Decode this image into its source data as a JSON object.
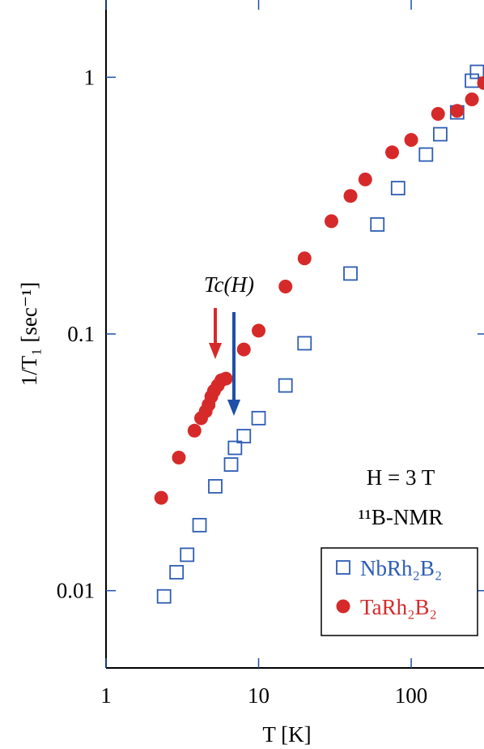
{
  "chart_data": {
    "type": "scatter",
    "xscale": "log",
    "yscale": "log",
    "xlim": [
      1,
      300
    ],
    "ylim": [
      0.005,
      2
    ],
    "xlabel": "T [K]",
    "ylabel": "1/T₁ [sec⁻¹]",
    "xticks": [
      "1",
      "10",
      "100"
    ],
    "yticks": [
      "0.01",
      "0.1",
      "1"
    ],
    "annotation_field": "H = 3 T",
    "annotation_nucleus": "¹¹B-NMR",
    "annotation_tc": "Tc(H)",
    "arrow_colors": [
      "#d62a2a",
      "#1f4fa8"
    ],
    "series": [
      {
        "name": "NbRh₂B₂",
        "marker": "open-square",
        "color": "#2e5db5",
        "points": [
          {
            "x": 2.4,
            "y": 0.0095
          },
          {
            "x": 2.9,
            "y": 0.0118
          },
          {
            "x": 3.4,
            "y": 0.0138
          },
          {
            "x": 4.1,
            "y": 0.018
          },
          {
            "x": 5.2,
            "y": 0.0255
          },
          {
            "x": 6.6,
            "y": 0.031
          },
          {
            "x": 7.0,
            "y": 0.036
          },
          {
            "x": 8.0,
            "y": 0.04
          },
          {
            "x": 10.0,
            "y": 0.047
          },
          {
            "x": 15.0,
            "y": 0.063
          },
          {
            "x": 20.0,
            "y": 0.092
          },
          {
            "x": 40.0,
            "y": 0.172
          },
          {
            "x": 60.0,
            "y": 0.267
          },
          {
            "x": 82.0,
            "y": 0.37
          },
          {
            "x": 125.0,
            "y": 0.5
          },
          {
            "x": 155.0,
            "y": 0.6
          },
          {
            "x": 200.0,
            "y": 0.73
          },
          {
            "x": 250.0,
            "y": 0.97
          },
          {
            "x": 270.0,
            "y": 1.05
          }
        ]
      },
      {
        "name": "TaRh₂B₂",
        "marker": "filled-circle",
        "color": "#d62a2a",
        "points": [
          {
            "x": 2.3,
            "y": 0.023
          },
          {
            "x": 3.0,
            "y": 0.033
          },
          {
            "x": 3.8,
            "y": 0.042
          },
          {
            "x": 4.2,
            "y": 0.047
          },
          {
            "x": 4.5,
            "y": 0.05
          },
          {
            "x": 4.7,
            "y": 0.053
          },
          {
            "x": 4.9,
            "y": 0.057
          },
          {
            "x": 5.1,
            "y": 0.06
          },
          {
            "x": 5.4,
            "y": 0.063
          },
          {
            "x": 5.7,
            "y": 0.066
          },
          {
            "x": 6.1,
            "y": 0.067
          },
          {
            "x": 8.0,
            "y": 0.087
          },
          {
            "x": 10.0,
            "y": 0.103
          },
          {
            "x": 15.0,
            "y": 0.153
          },
          {
            "x": 20.0,
            "y": 0.197
          },
          {
            "x": 30.0,
            "y": 0.275
          },
          {
            "x": 40.0,
            "y": 0.345
          },
          {
            "x": 50.0,
            "y": 0.4
          },
          {
            "x": 75.0,
            "y": 0.51
          },
          {
            "x": 100.0,
            "y": 0.57
          },
          {
            "x": 150.0,
            "y": 0.72
          },
          {
            "x": 200.0,
            "y": 0.74
          },
          {
            "x": 250.0,
            "y": 0.82
          },
          {
            "x": 300.0,
            "y": 0.95
          }
        ]
      }
    ]
  }
}
